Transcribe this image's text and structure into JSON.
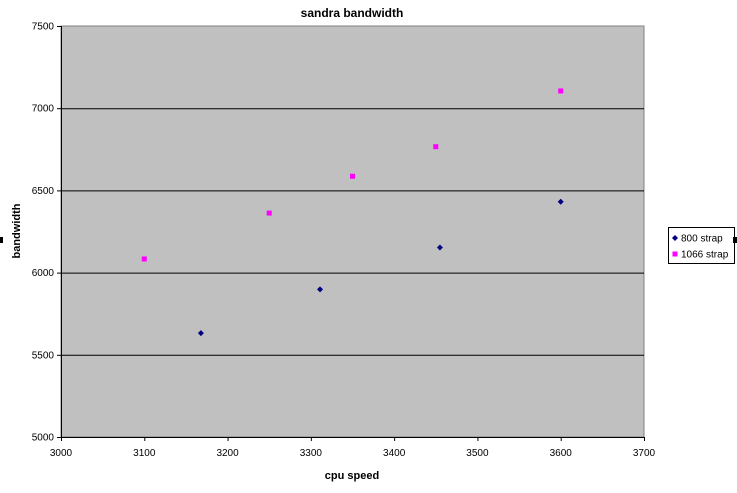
{
  "chart_data": {
    "type": "scatter",
    "title": "sandra bandwidth",
    "xlabel": "cpu speed",
    "ylabel": "bandwidth",
    "xlim": [
      3000,
      3700
    ],
    "ylim": [
      5000,
      7500
    ],
    "x_ticks": [
      3000,
      3100,
      3200,
      3300,
      3400,
      3500,
      3600,
      3700
    ],
    "y_ticks": [
      5000,
      5500,
      6000,
      6500,
      7000,
      7500
    ],
    "grid": "horizontal major gridlines",
    "plot_background": "#c0c0c0",
    "legend_position": "right",
    "series": [
      {
        "name": "800 strap",
        "color": "#000080",
        "marker": "diamond",
        "points": [
          {
            "x": 3168,
            "y": 5632
          },
          {
            "x": 3311,
            "y": 5898
          },
          {
            "x": 3455,
            "y": 6153
          },
          {
            "x": 3600,
            "y": 6431
          }
        ]
      },
      {
        "name": "1066 strap",
        "color": "#ff00ff",
        "marker": "square",
        "points": [
          {
            "x": 3100,
            "y": 6083
          },
          {
            "x": 3250,
            "y": 6362
          },
          {
            "x": 3350,
            "y": 6586
          },
          {
            "x": 3450,
            "y": 6766
          },
          {
            "x": 3600,
            "y": 7105
          }
        ]
      }
    ]
  }
}
